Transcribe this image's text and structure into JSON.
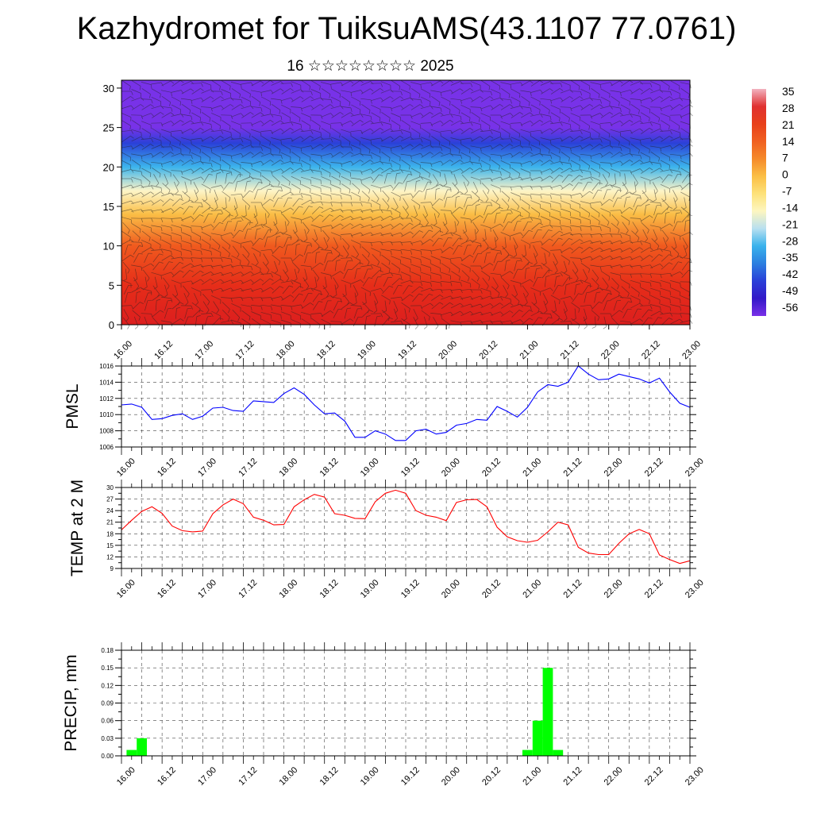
{
  "title": "Kazhydromet for TuiksuAMS(43.1107 77.0761)",
  "subtitle": "16 ☆☆☆☆☆☆☆☆ 2025",
  "time_ticks": [
    "16.00",
    "16.12",
    "17.00",
    "17.12",
    "18.00",
    "18.12",
    "19.00",
    "19.12",
    "20.00",
    "20.12",
    "21.00",
    "21.12",
    "22.00",
    "22.12",
    "23.00"
  ],
  "colorbar": {
    "labels": [
      "35",
      "28",
      "21",
      "14",
      "7",
      "0",
      "-7",
      "-14",
      "-21",
      "-28",
      "-35",
      "-42",
      "-49",
      "-56"
    ],
    "colors": [
      "#f2b3c0",
      "#e03030",
      "#e8401a",
      "#f06020",
      "#f58a2a",
      "#fbbf45",
      "#fde27a",
      "#fdf6c0",
      "#b8e0f0",
      "#39b2ec",
      "#2c7fe0",
      "#2a3fd8",
      "#3318c8",
      "#7a30e8"
    ]
  },
  "chart_data": [
    {
      "type": "heatmap",
      "title": "",
      "xlabel": "",
      "ylabel": "",
      "ylim": [
        0,
        31
      ],
      "yticks": [
        0,
        5,
        10,
        15,
        20,
        25,
        30
      ],
      "x": [
        "16.00",
        "16.12",
        "17.00",
        "17.12",
        "18.00",
        "18.12",
        "19.00",
        "19.12",
        "20.00",
        "20.12",
        "21.00",
        "21.12",
        "22.00",
        "22.12",
        "23.00"
      ],
      "levels_approx_temp": [
        {
          "y": 0,
          "value": 28
        },
        {
          "y": 5,
          "value": 21
        },
        {
          "y": 10,
          "value": 14
        },
        {
          "y": 14,
          "value": 0
        },
        {
          "y": 17,
          "value": -14
        },
        {
          "y": 20,
          "value": -28
        },
        {
          "y": 23,
          "value": -42
        },
        {
          "y": 25,
          "value": -56
        },
        {
          "y": 31,
          "value": -56
        }
      ],
      "overlay": "wind barbs"
    },
    {
      "type": "line",
      "ylabel": "PMSL",
      "ylim": [
        1006,
        1016
      ],
      "yticks": [
        1006,
        1008,
        1010,
        1012,
        1014,
        1016
      ],
      "series": [
        {
          "color": "#0000ff",
          "values": [
            1011.2,
            1011.3,
            1010.9,
            1009.4,
            1009.5,
            1009.9,
            1010.1,
            1009.4,
            1009.8,
            1010.8,
            1010.9,
            1010.5,
            1010.4,
            1011.7,
            1011.6,
            1011.5,
            1012.6,
            1013.3,
            1012.5,
            1011.2,
            1010.1,
            1010.2,
            1009.2,
            1007.2,
            1007.2,
            1008.0,
            1007.6,
            1006.8,
            1006.8,
            1008.0,
            1008.2,
            1007.6,
            1007.8,
            1008.7,
            1008.9,
            1009.4,
            1009.3,
            1011.0,
            1010.4,
            1009.7,
            1010.9,
            1012.8,
            1013.7,
            1013.5,
            1014.0,
            1016.0,
            1015.0,
            1014.3,
            1014.4,
            1015.0,
            1014.7,
            1014.4,
            1013.9,
            1014.5,
            1012.8,
            1011.4,
            1010.9
          ]
        }
      ]
    },
    {
      "type": "line",
      "ylabel": "TEMP at 2 M",
      "ylim": [
        9,
        30
      ],
      "yticks": [
        9,
        12,
        15,
        18,
        21,
        24,
        27,
        30
      ],
      "series": [
        {
          "color": "#ff0000",
          "values": [
            19,
            21.5,
            23.8,
            25,
            23.3,
            20,
            18.8,
            18.5,
            18.7,
            23.2,
            25.5,
            27,
            25.8,
            22.3,
            21.5,
            20.3,
            20.4,
            25,
            26.8,
            28.2,
            27.5,
            23.2,
            22.8,
            22,
            21.9,
            26.3,
            28.5,
            29.3,
            28.5,
            24,
            22.8,
            22.3,
            21.4,
            26.1,
            26.8,
            26.9,
            25,
            19.7,
            17.2,
            16.2,
            15.8,
            16.3,
            18.5,
            21,
            20.3,
            14.5,
            13,
            12.6,
            12.6,
            15.5,
            18,
            19.1,
            18,
            12.5,
            11.3,
            10.3,
            11
          ]
        }
      ]
    },
    {
      "type": "bar",
      "ylabel": "PRECIP, mm",
      "ylim": [
        0,
        0.18
      ],
      "yticks": [
        "0.00",
        "0.03",
        "0.06",
        "0.09",
        "0.12",
        "0.15",
        "0.18"
      ],
      "color": "#00ff00",
      "bars": [
        {
          "x": 1,
          "value": 0.01
        },
        {
          "x": 2,
          "value": 0.03
        },
        {
          "x": 40,
          "value": 0.01
        },
        {
          "x": 41,
          "value": 0.06
        },
        {
          "x": 42,
          "value": 0.15
        },
        {
          "x": 43,
          "value": 0.01
        }
      ]
    }
  ]
}
